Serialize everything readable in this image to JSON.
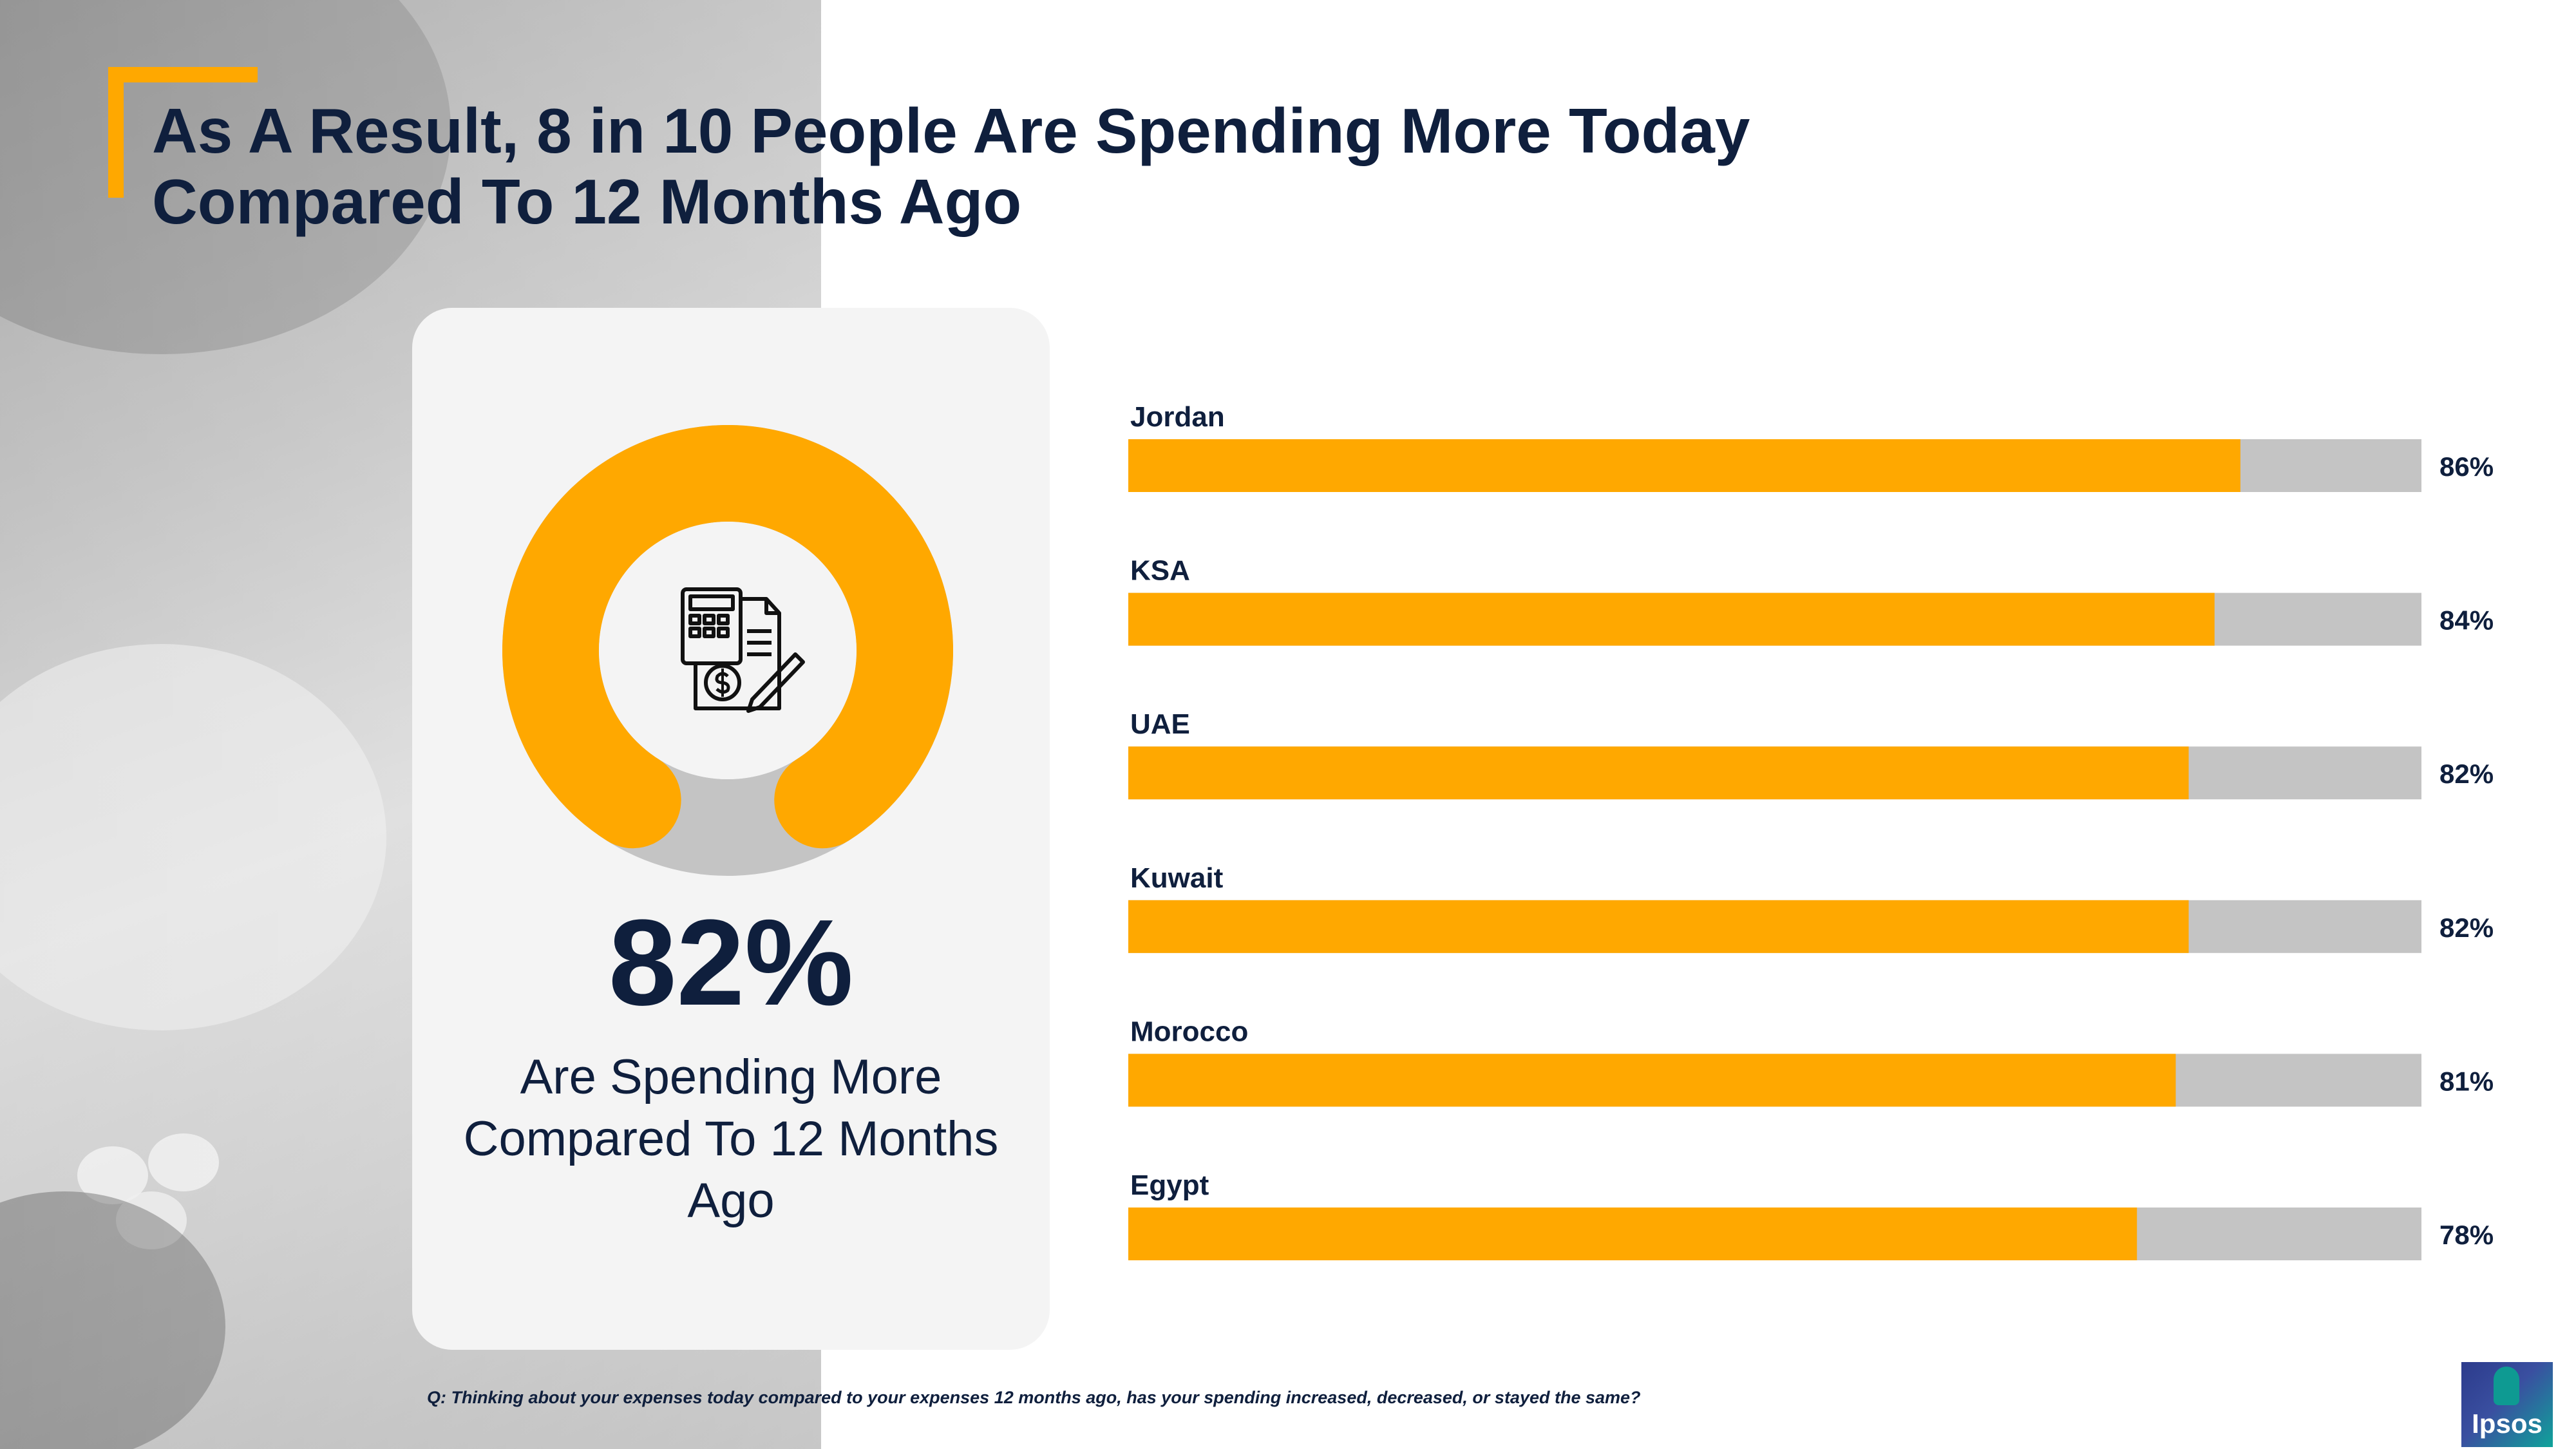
{
  "header": {
    "title_line1": "As A Result, 8 in 10 People Are Spending More Today",
    "title_line2": "Compared To 12 Months Ago"
  },
  "highlight": {
    "value": "82%",
    "label": "Are Spending More Compared To 12 Months Ago",
    "icon": "calculator-invoice-icon"
  },
  "footnote": "Q: Thinking about your expenses today compared to your expenses 12 months ago, has your spending increased, decreased, or stayed the same?",
  "brand": {
    "name": "Ipsos"
  },
  "colors": {
    "accent": "#ffa800",
    "navy": "#0f1f3d",
    "track": "#c4c4c4",
    "card": "#f4f4f4"
  },
  "chart_data": {
    "type": "bar",
    "orientation": "horizontal",
    "title": "As A Result, 8 in 10 People Are Spending More Today Compared To 12 Months Ago",
    "categories": [
      "Jordan",
      "KSA",
      "UAE",
      "Kuwait",
      "Morocco",
      "Egypt"
    ],
    "values": [
      86,
      84,
      82,
      82,
      81,
      78
    ],
    "value_labels": [
      "86%",
      "84%",
      "82%",
      "82%",
      "81%",
      "78%"
    ],
    "xlim": [
      0,
      100
    ],
    "unit": "%",
    "grid": false,
    "legend": "none"
  }
}
